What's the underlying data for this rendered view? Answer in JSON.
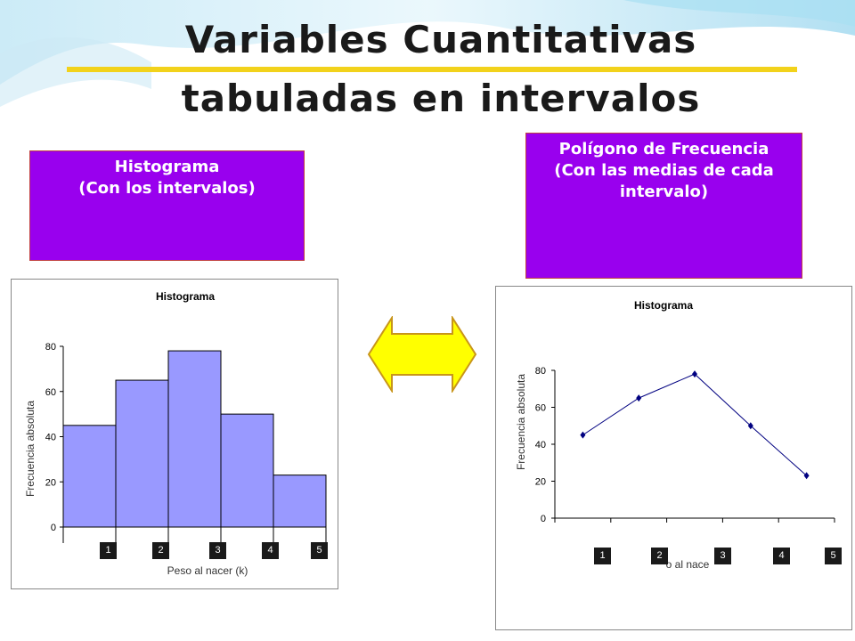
{
  "slide": {
    "title_line1": "Variables Cuantitativas",
    "title_line2": "tabuladas en intervalos",
    "box_left": {
      "line1": "Histograma",
      "line2": "(Con los intervalos)"
    },
    "box_right": {
      "line1": "Polígono de Frecuencia",
      "line2": "(Con las medias de cada",
      "line3": "intervalo)"
    },
    "accent_color": "#9900ee",
    "underline_color": "#f2d21b",
    "arrow": {
      "icon": "double-arrow-icon",
      "color": "#ffff00"
    },
    "number_labels": [
      "1",
      "2",
      "3",
      "4",
      "5"
    ]
  },
  "chart_data": [
    {
      "type": "bar",
      "title": "Histograma",
      "xlabel": "Peso al nacer (k)",
      "ylabel": "Frecuencia absoluta",
      "ylim": [
        0,
        80
      ],
      "yticks": [
        0,
        20,
        40,
        60,
        80
      ],
      "values": [
        45,
        65,
        78,
        50,
        23
      ],
      "bar_color": "#9999ff",
      "grid": false
    },
    {
      "type": "line",
      "title": "Histograma",
      "xlabel": "o al nace",
      "ylabel": "Frecuencia absoluta",
      "ylim": [
        0,
        80
      ],
      "yticks": [
        0,
        20,
        40,
        60,
        80
      ],
      "values": [
        45,
        65,
        78,
        50,
        23
      ],
      "line_color": "#000080",
      "grid": false
    }
  ]
}
